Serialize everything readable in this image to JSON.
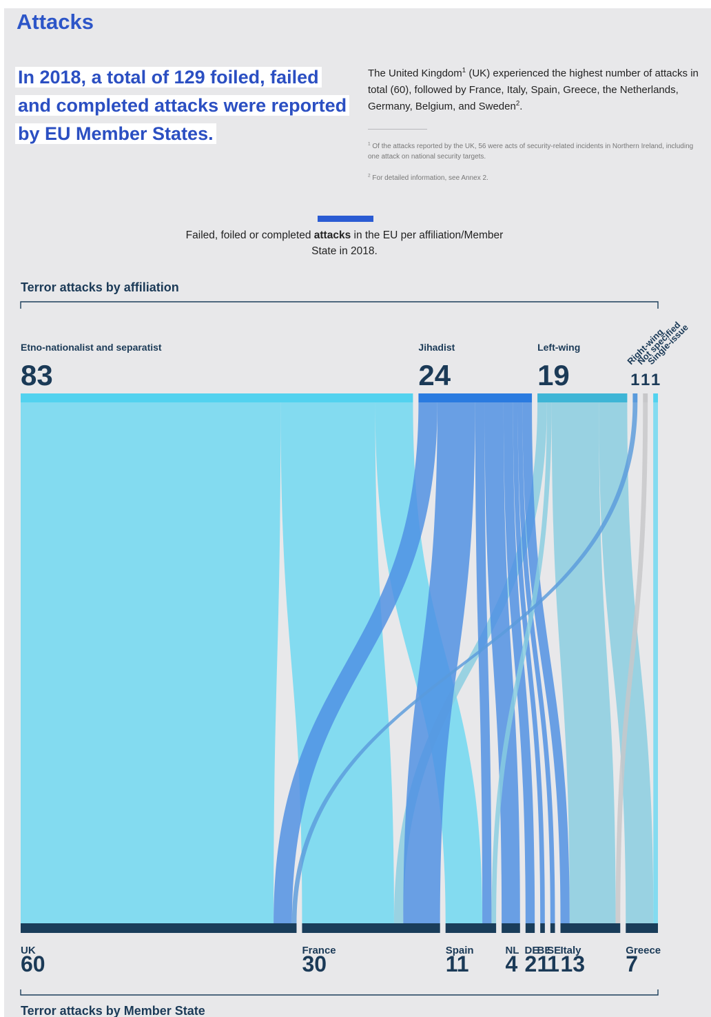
{
  "title": "Attacks",
  "headline": "In 2018, a total of 129 foiled, failed and completed attacks were reported by EU Member States.",
  "intro": {
    "p1": "The United Kingdom",
    "sup1": "1",
    "p2": " (UK) experienced the highest number of attacks in total (60), followed by France, Italy, Spain, Greece, the Netherlands, Germany, Belgium, and Sweden",
    "sup2": "2",
    "p3": "."
  },
  "footnotes": [
    {
      "mark": "1",
      "text": "Of the attacks reported by the UK, 56 were acts of security-related incidents in Northern Ireland, including one attack on national security targets."
    },
    {
      "mark": "2",
      "text": "For detailed information, see Annex 2."
    }
  ],
  "caption": {
    "before": "Failed, foiled or completed ",
    "bold": "attacks",
    "after": " in the EU per affiliation/Member State in 2018."
  },
  "colors": {
    "accent": "#2a5bd3",
    "headline": "#2b4fc2",
    "state_bar": "#1a3d5a",
    "number": "#1b3a57"
  },
  "chart_data": {
    "type": "sankey",
    "top_axis_label": "Terror attacks by affiliation",
    "bottom_axis_label": "Terror attacks by Member State",
    "sources": [
      {
        "name": "Etno-nationalist and separatist",
        "value": 83,
        "color": "#52d2ef",
        "flow_color": "#6dd8f1"
      },
      {
        "name": "Jihadist",
        "value": 24,
        "color": "#2a7be0",
        "flow_color": "#4d8fe3"
      },
      {
        "name": "Left-wing",
        "value": 19,
        "color": "#3eb5d6",
        "flow_color": "#87cde0"
      },
      {
        "name": "Right-wing",
        "value": 1,
        "color": "#5a9bdc",
        "flow_color": "#5a9bdc"
      },
      {
        "name": "Not specified",
        "value": 1,
        "color": "#c7c7c9",
        "flow_color": "#c7c7c9"
      },
      {
        "name": "Single-issue",
        "value": 1,
        "color": "#52d2ef",
        "flow_color": "#6dd8f1"
      }
    ],
    "targets": [
      {
        "label": "UK",
        "value": 60
      },
      {
        "label": "France",
        "value": 30
      },
      {
        "label": "Spain",
        "value": 11
      },
      {
        "label": "NL",
        "value": 4
      },
      {
        "label": "DE",
        "value": 2
      },
      {
        "label": "BE",
        "value": 1
      },
      {
        "label": "SE",
        "value": 1
      },
      {
        "label": "Italy",
        "value": 13
      },
      {
        "label": "Greece",
        "value": 7
      }
    ],
    "flows": [
      {
        "source": 0,
        "target": 0,
        "value": 55
      },
      {
        "source": 0,
        "target": 1,
        "value": 20
      },
      {
        "source": 0,
        "target": 2,
        "value": 8
      },
      {
        "source": 2,
        "target": 1,
        "value": 2
      },
      {
        "source": 1,
        "target": 0,
        "value": 4
      },
      {
        "source": 1,
        "target": 1,
        "value": 8
      },
      {
        "source": 1,
        "target": 2,
        "value": 2
      },
      {
        "source": 1,
        "target": 3,
        "value": 4
      },
      {
        "source": 1,
        "target": 4,
        "value": 2
      },
      {
        "source": 1,
        "target": 5,
        "value": 1
      },
      {
        "source": 1,
        "target": 6,
        "value": 1
      },
      {
        "source": 1,
        "target": 7,
        "value": 2
      },
      {
        "source": 2,
        "target": 2,
        "value": 1
      },
      {
        "source": 2,
        "target": 7,
        "value": 10
      },
      {
        "source": 2,
        "target": 8,
        "value": 6
      },
      {
        "source": 3,
        "target": 0,
        "value": 1
      },
      {
        "source": 4,
        "target": 7,
        "value": 1
      },
      {
        "source": 5,
        "target": 8,
        "value": 1
      }
    ]
  }
}
